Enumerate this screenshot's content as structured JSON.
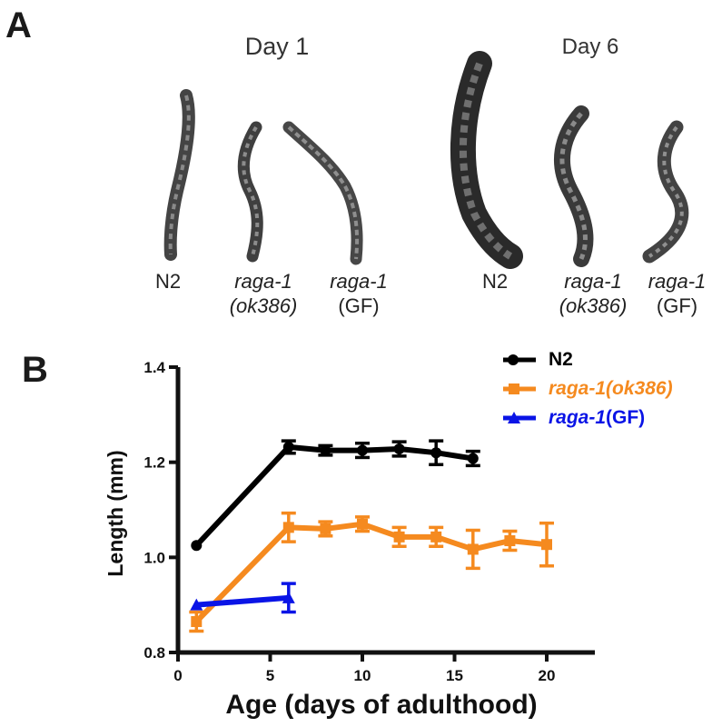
{
  "panel_a": {
    "letter": "A",
    "day1_label": "Day 1",
    "day6_label": "Day 6",
    "strains_day1": [
      {
        "line1": "N2",
        "line2": "",
        "italic": false
      },
      {
        "line1": "raga-1",
        "line2": "(ok386)",
        "italic": true
      },
      {
        "line1": "raga-1",
        "line2": "(GF)",
        "italic": false
      }
    ],
    "strains_day6": [
      {
        "line1": "N2",
        "line2": "",
        "italic": false
      },
      {
        "line1": "raga-1",
        "line2": "(ok386)",
        "italic": true
      },
      {
        "line1": "raga-1",
        "line2": "(GF)",
        "italic": false
      }
    ]
  },
  "panel_b": {
    "letter": "B"
  },
  "legend": [
    {
      "name_italic": "",
      "name_plain": "N2",
      "color": "#000000",
      "marker": "circle"
    },
    {
      "name_italic": "raga-1(ok386)",
      "name_plain": "",
      "color": "#f58a1f",
      "marker": "square"
    },
    {
      "name_italic": "raga-1",
      "name_plain": "(GF)",
      "color": "#0a14e6",
      "marker": "triangle"
    }
  ],
  "chart_data": {
    "type": "line",
    "xlabel": "Age (days of adulthood)",
    "ylabel": "Length (mm)",
    "xlim": [
      0,
      22
    ],
    "ylim": [
      0.8,
      1.4
    ],
    "xticks": [
      0,
      5,
      10,
      15,
      20
    ],
    "yticks": [
      0.8,
      1.0,
      1.2,
      1.4
    ],
    "ytick_labels": [
      "0.8",
      "1.0",
      "1.2",
      "1.4"
    ],
    "grid": false,
    "legend_position": "top-right",
    "series": [
      {
        "name": "N2",
        "color": "#000000",
        "x": [
          1,
          6,
          8,
          10,
          12,
          14,
          16
        ],
        "y": [
          1.025,
          1.232,
          1.225,
          1.225,
          1.228,
          1.22,
          1.208
        ],
        "err": [
          0.0,
          0.013,
          0.01,
          0.015,
          0.015,
          0.025,
          0.015
        ]
      },
      {
        "name": "raga-1(ok386)",
        "color": "#f58a1f",
        "x": [
          1,
          6,
          8,
          10,
          12,
          14,
          16,
          18,
          20
        ],
        "y": [
          0.865,
          1.063,
          1.06,
          1.07,
          1.043,
          1.043,
          1.017,
          1.035,
          1.027
        ],
        "err": [
          0.02,
          0.03,
          0.015,
          0.015,
          0.02,
          0.02,
          0.04,
          0.02,
          0.045
        ]
      },
      {
        "name": "raga-1(GF)",
        "color": "#0a14e6",
        "x": [
          1,
          6
        ],
        "y": [
          0.9,
          0.915
        ],
        "err": [
          0.0,
          0.03
        ]
      }
    ]
  }
}
